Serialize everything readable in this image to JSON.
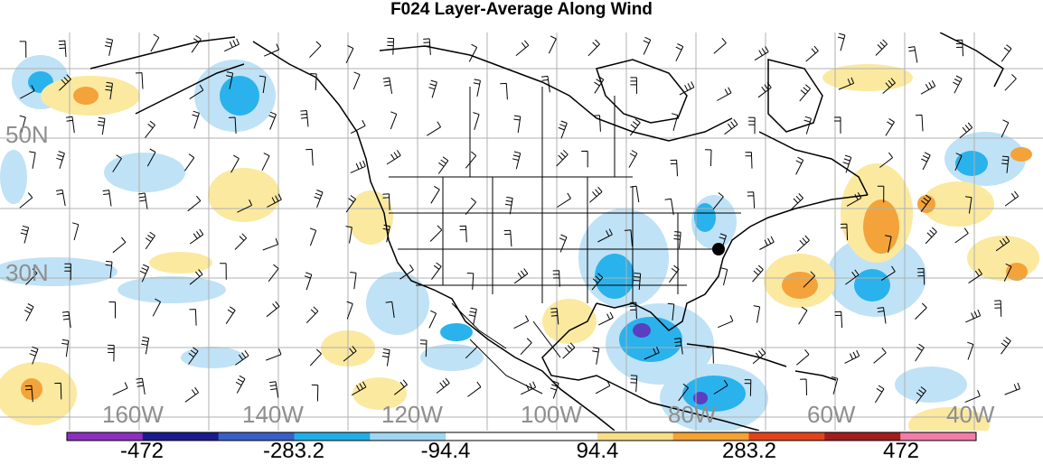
{
  "title": "F024 Layer-Average Along Wind",
  "map": {
    "lat_labels": [
      "50N",
      "30N"
    ],
    "lon_labels": [
      "160W",
      "140W",
      "120W",
      "100W",
      "80W",
      "60W",
      "40W"
    ],
    "colors": {
      "ocean": "#ffffff",
      "grid": "#b0b0b0",
      "coast": "#000000",
      "pos1": "#fbe9a0",
      "pos2": "#f3a33a",
      "neg1": "#bfe2f6",
      "neg2": "#2ab2ec",
      "neg3": "#5a3fc0"
    }
  },
  "colorbar": {
    "labels": [
      "-472",
      "-283.2",
      "-94.4",
      "94.4",
      "283.2",
      "472"
    ],
    "colors": [
      "#8c2fbf",
      "#1a1b8c",
      "#3a5ec8",
      "#21aee8",
      "#9fd6f2",
      "#ffffff",
      "#ffffff",
      "#f7df86",
      "#f4a233",
      "#e2431a",
      "#a31d1d",
      "#f27dab"
    ]
  }
}
